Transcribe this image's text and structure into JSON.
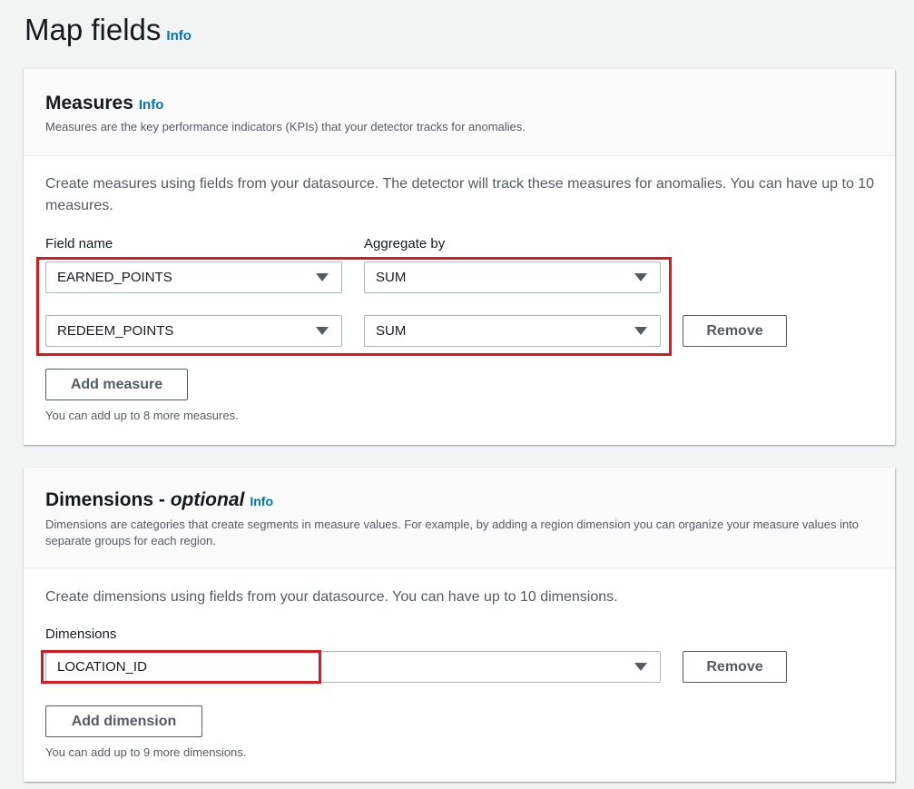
{
  "page": {
    "title": "Map fields",
    "info": "Info"
  },
  "measures": {
    "title": "Measures",
    "info": "Info",
    "description": "Measures are the key performance indicators (KPIs) that your detector tracks for anomalies.",
    "body": "Create measures using fields from your datasource. The detector will track these measures for anomalies. You can have up to 10 measures.",
    "field_label": "Field name",
    "aggregate_label": "Aggregate by",
    "rows": [
      {
        "field": "EARNED_POINTS",
        "aggregate": "SUM"
      },
      {
        "field": "REDEEM_POINTS",
        "aggregate": "SUM"
      }
    ],
    "remove_label": "Remove",
    "add_label": "Add measure",
    "hint": "You can add up to 8 more measures."
  },
  "dimensions": {
    "title": "Dimensions - ",
    "title_optional": "optional",
    "info": "Info",
    "description": "Dimensions are categories that create segments in measure values. For example, by adding a region dimension you can organize your measure values into separate groups for each region.",
    "body": "Create dimensions using fields from your datasource. You can have up to 10 dimensions.",
    "label": "Dimensions",
    "value": "LOCATION_ID",
    "remove_label": "Remove",
    "add_label": "Add dimension",
    "hint": "You can add up to 9 more dimensions."
  },
  "colors": {
    "accent": "#0073bb",
    "highlight": "#e0161e"
  }
}
